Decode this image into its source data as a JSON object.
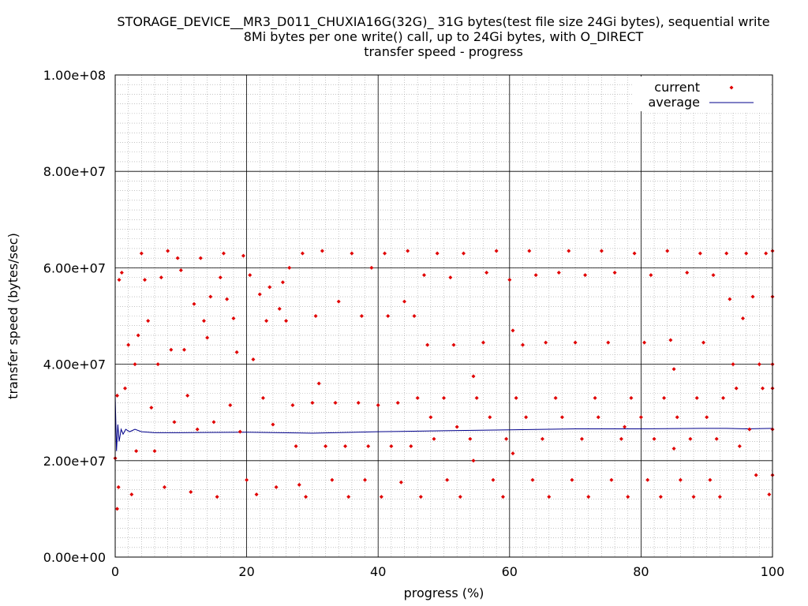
{
  "title": {
    "line1": "STORAGE_DEVICE__MR3_D011_CHUXIA16G(32G)_ 31G bytes(test file size 24Gi bytes), sequential write",
    "line2": "8Mi bytes per one write() call, up to 24Gi bytes, with O_DIRECT",
    "line3": "transfer speed - progress"
  },
  "chart_data": {
    "type": "scatter",
    "xlabel": "progress (%)",
    "ylabel": "transfer speed (bytes/sec)",
    "xlim": [
      0,
      100
    ],
    "ylim": [
      0,
      100000000
    ],
    "x_ticks": [
      0,
      20,
      40,
      60,
      80,
      100
    ],
    "y_ticks": [
      0,
      20000000,
      40000000,
      60000000,
      80000000,
      100000000
    ],
    "x_tick_labels": [
      "0",
      "20",
      "40",
      "60",
      "80",
      "100"
    ],
    "y_tick_labels": [
      "0.00e+00",
      "2.00e+07",
      "4.00e+07",
      "6.00e+07",
      "8.00e+07",
      "1.00e+08"
    ],
    "grid": true,
    "minor_grid": true,
    "legend_position": "top-right",
    "legend": [
      {
        "label": "current",
        "marker": "dot",
        "color": "#e00000"
      },
      {
        "label": "average",
        "marker": "line",
        "color": "#00008b"
      }
    ],
    "series": [
      {
        "name": "current",
        "color": "#e00000",
        "points": [
          [
            0,
            20500000
          ],
          [
            0.3,
            33500000
          ],
          [
            0.3,
            10000000
          ],
          [
            0.5,
            14500000
          ],
          [
            0.6,
            57500000
          ],
          [
            1,
            59000000
          ],
          [
            1.5,
            35000000
          ],
          [
            2,
            44000000
          ],
          [
            2.5,
            13000000
          ],
          [
            3,
            40000000
          ],
          [
            3.2,
            22000000
          ],
          [
            3.5,
            46000000
          ],
          [
            4,
            63000000
          ],
          [
            4.5,
            57500000
          ],
          [
            5,
            49000000
          ],
          [
            5.5,
            31000000
          ],
          [
            6,
            22000000
          ],
          [
            6.5,
            40000000
          ],
          [
            7,
            58000000
          ],
          [
            7.5,
            14500000
          ],
          [
            8,
            63500000
          ],
          [
            8.5,
            43000000
          ],
          [
            9,
            28000000
          ],
          [
            9.5,
            62000000
          ],
          [
            10,
            59500000
          ],
          [
            10.5,
            43000000
          ],
          [
            11,
            33500000
          ],
          [
            11.5,
            13500000
          ],
          [
            12,
            52500000
          ],
          [
            12.5,
            26500000
          ],
          [
            13,
            62000000
          ],
          [
            13.5,
            49000000
          ],
          [
            14,
            45500000
          ],
          [
            14.5,
            54000000
          ],
          [
            15,
            28000000
          ],
          [
            15.5,
            12500000
          ],
          [
            16,
            58000000
          ],
          [
            16.5,
            63000000
          ],
          [
            17,
            53500000
          ],
          [
            17.5,
            31500000
          ],
          [
            18,
            49500000
          ],
          [
            18.5,
            42500000
          ],
          [
            19,
            26000000
          ],
          [
            19.5,
            62500000
          ],
          [
            20,
            16000000
          ],
          [
            20.5,
            58500000
          ],
          [
            21,
            41000000
          ],
          [
            21.5,
            13000000
          ],
          [
            22,
            54500000
          ],
          [
            22.5,
            33000000
          ],
          [
            23,
            49000000
          ],
          [
            23.5,
            56000000
          ],
          [
            24,
            27500000
          ],
          [
            24.5,
            14500000
          ],
          [
            25,
            51500000
          ],
          [
            25.5,
            57000000
          ],
          [
            26,
            49000000
          ],
          [
            26.5,
            60000000
          ],
          [
            27,
            31500000
          ],
          [
            27.5,
            23000000
          ],
          [
            28,
            15000000
          ],
          [
            28.5,
            63000000
          ],
          [
            29,
            12500000
          ],
          [
            30,
            32000000
          ],
          [
            30.5,
            50000000
          ],
          [
            31,
            36000000
          ],
          [
            31.5,
            63500000
          ],
          [
            32,
            23000000
          ],
          [
            33,
            16000000
          ],
          [
            33.5,
            32000000
          ],
          [
            34,
            53000000
          ],
          [
            35,
            23000000
          ],
          [
            35.5,
            12500000
          ],
          [
            36,
            63000000
          ],
          [
            37,
            32000000
          ],
          [
            37.5,
            50000000
          ],
          [
            38,
            16000000
          ],
          [
            38.5,
            23000000
          ],
          [
            39,
            60000000
          ],
          [
            40,
            31500000
          ],
          [
            40.5,
            12500000
          ],
          [
            41,
            63000000
          ],
          [
            41.5,
            50000000
          ],
          [
            42,
            23000000
          ],
          [
            43,
            32000000
          ],
          [
            43.5,
            15500000
          ],
          [
            44,
            53000000
          ],
          [
            44.5,
            63500000
          ],
          [
            45,
            23000000
          ],
          [
            45.5,
            50000000
          ],
          [
            46,
            33000000
          ],
          [
            46.5,
            12500000
          ],
          [
            47,
            58500000
          ],
          [
            47.5,
            44000000
          ],
          [
            48,
            29000000
          ],
          [
            48.5,
            24500000
          ],
          [
            49,
            63000000
          ],
          [
            50,
            33000000
          ],
          [
            50.5,
            16000000
          ],
          [
            51,
            58000000
          ],
          [
            51.5,
            44000000
          ],
          [
            52,
            27000000
          ],
          [
            52.5,
            12500000
          ],
          [
            53,
            63000000
          ],
          [
            54,
            24500000
          ],
          [
            54.5,
            37500000
          ],
          [
            54.5,
            20000000
          ],
          [
            55,
            33000000
          ],
          [
            56,
            44500000
          ],
          [
            56.5,
            59000000
          ],
          [
            57,
            29000000
          ],
          [
            57.5,
            16000000
          ],
          [
            58,
            63500000
          ],
          [
            59,
            12500000
          ],
          [
            59.5,
            24500000
          ],
          [
            60,
            57500000
          ],
          [
            60.5,
            47000000
          ],
          [
            60.5,
            21500000
          ],
          [
            61,
            33000000
          ],
          [
            62,
            44000000
          ],
          [
            62.5,
            29000000
          ],
          [
            63,
            63500000
          ],
          [
            63.5,
            16000000
          ],
          [
            64,
            58500000
          ],
          [
            65,
            24500000
          ],
          [
            65.5,
            44500000
          ],
          [
            66,
            12500000
          ],
          [
            67,
            33000000
          ],
          [
            67.5,
            59000000
          ],
          [
            68,
            29000000
          ],
          [
            69,
            63500000
          ],
          [
            69.5,
            16000000
          ],
          [
            70,
            44500000
          ],
          [
            71,
            24500000
          ],
          [
            71.5,
            58500000
          ],
          [
            72,
            12500000
          ],
          [
            73,
            33000000
          ],
          [
            73.5,
            29000000
          ],
          [
            74,
            63500000
          ],
          [
            75,
            44500000
          ],
          [
            75.5,
            16000000
          ],
          [
            76,
            59000000
          ],
          [
            77,
            24500000
          ],
          [
            77.5,
            27000000
          ],
          [
            78,
            12500000
          ],
          [
            78.5,
            33000000
          ],
          [
            79,
            63000000
          ],
          [
            80,
            29000000
          ],
          [
            80.5,
            44500000
          ],
          [
            81,
            16000000
          ],
          [
            81.5,
            58500000
          ],
          [
            82,
            24500000
          ],
          [
            83,
            12500000
          ],
          [
            83.5,
            33000000
          ],
          [
            84,
            63500000
          ],
          [
            84.5,
            45000000
          ],
          [
            85,
            22500000
          ],
          [
            85,
            39000000
          ],
          [
            85.5,
            29000000
          ],
          [
            86,
            16000000
          ],
          [
            87,
            59000000
          ],
          [
            87.5,
            24500000
          ],
          [
            88,
            12500000
          ],
          [
            88.5,
            33000000
          ],
          [
            89,
            63000000
          ],
          [
            89.5,
            44500000
          ],
          [
            90,
            29000000
          ],
          [
            90.5,
            16000000
          ],
          [
            91,
            58500000
          ],
          [
            91.5,
            24500000
          ],
          [
            92,
            12500000
          ],
          [
            92.5,
            33000000
          ],
          [
            93,
            63000000
          ],
          [
            93.5,
            53500000
          ],
          [
            94,
            40000000
          ],
          [
            94.5,
            35000000
          ],
          [
            95,
            23000000
          ],
          [
            95.5,
            49500000
          ],
          [
            96,
            63000000
          ],
          [
            96.5,
            26500000
          ],
          [
            97,
            54000000
          ],
          [
            97.5,
            17000000
          ],
          [
            98,
            40000000
          ],
          [
            98.5,
            35000000
          ],
          [
            99,
            63000000
          ],
          [
            99.5,
            13000000
          ],
          [
            100,
            63500000
          ],
          [
            100,
            54000000
          ],
          [
            100,
            40000000
          ],
          [
            100,
            35000000
          ],
          [
            100,
            26500000
          ],
          [
            100,
            17000000
          ]
        ]
      },
      {
        "name": "average",
        "color": "#00008b",
        "points": [
          [
            0,
            33500000
          ],
          [
            0.2,
            22000000
          ],
          [
            0.4,
            27500000
          ],
          [
            0.6,
            24000000
          ],
          [
            0.9,
            26500000
          ],
          [
            1.2,
            25500000
          ],
          [
            1.6,
            26500000
          ],
          [
            2.2,
            26000000
          ],
          [
            3,
            26500000
          ],
          [
            4,
            26000000
          ],
          [
            6,
            25800000
          ],
          [
            10,
            25800000
          ],
          [
            20,
            25900000
          ],
          [
            30,
            25700000
          ],
          [
            40,
            26000000
          ],
          [
            50,
            26200000
          ],
          [
            60,
            26400000
          ],
          [
            70,
            26600000
          ],
          [
            80,
            26600000
          ],
          [
            90,
            26700000
          ],
          [
            93,
            26700000
          ],
          [
            96,
            26600000
          ],
          [
            100,
            26700000
          ]
        ]
      }
    ]
  }
}
